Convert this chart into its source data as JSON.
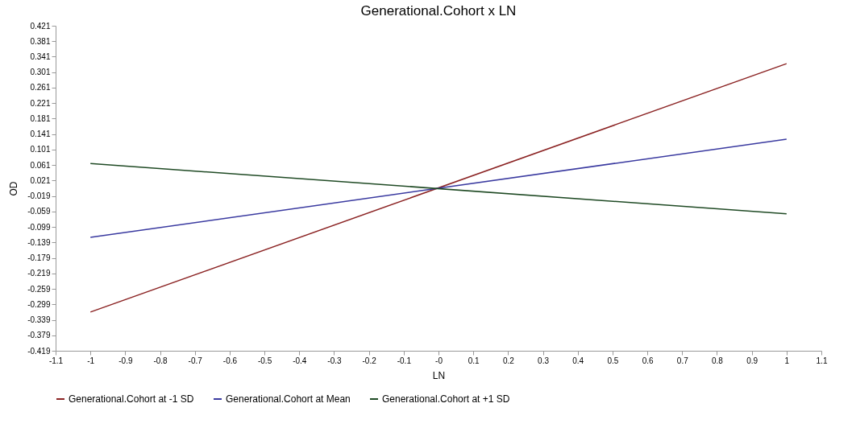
{
  "chart_data": {
    "type": "line",
    "title": "Generational.Cohort x LN",
    "xlabel": "LN",
    "ylabel": "OD",
    "x": [
      -1,
      1
    ],
    "series": [
      {
        "name": "Generational.Cohort at -1 SD",
        "color": "#8b2323",
        "values": [
          -0.319,
          0.323
        ]
      },
      {
        "name": "Generational.Cohort at Mean",
        "color": "#3a3aa0",
        "values": [
          -0.126,
          0.128
        ]
      },
      {
        "name": "Generational.Cohort at +1 SD",
        "color": "#1f4a24",
        "values": [
          0.065,
          -0.065
        ]
      }
    ],
    "xlim": [
      -1.1,
      1.1
    ],
    "xticks": [
      -1.1,
      -1,
      -0.9,
      -0.8,
      -0.7,
      -0.6,
      -0.5,
      -0.4,
      -0.3,
      -0.2,
      -0.1,
      {
        "value": 0,
        "label": "-0"
      },
      0.1,
      0.2,
      0.3,
      0.4,
      0.5,
      0.6,
      0.7,
      0.8,
      0.9,
      1,
      1.1
    ],
    "ylim": [
      -0.419,
      0.421
    ],
    "yticks": [
      0.421,
      0.381,
      0.341,
      0.301,
      0.261,
      0.221,
      0.181,
      0.141,
      0.101,
      0.061,
      0.021,
      -0.019,
      -0.059,
      -0.099,
      -0.139,
      -0.179,
      -0.219,
      -0.259,
      -0.299,
      -0.339,
      -0.379,
      -0.419
    ],
    "grid": false,
    "legend": "bottom",
    "marker": "none",
    "line_style": "solid"
  }
}
